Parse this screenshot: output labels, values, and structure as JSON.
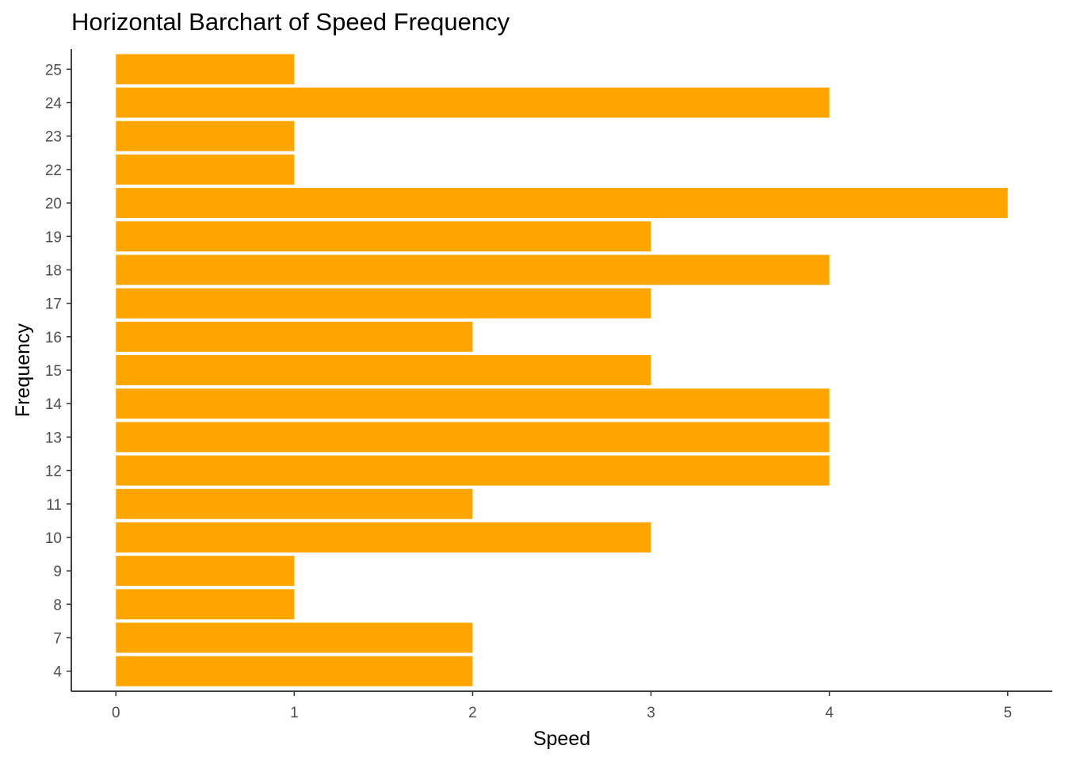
{
  "chart_data": {
    "type": "bar",
    "orientation": "horizontal",
    "title": "Horizontal Barchart of Speed Frequency",
    "xlabel": "Speed",
    "ylabel": "Frequency",
    "categories": [
      "4",
      "7",
      "8",
      "9",
      "10",
      "11",
      "12",
      "13",
      "14",
      "15",
      "16",
      "17",
      "18",
      "19",
      "20",
      "22",
      "23",
      "24",
      "25"
    ],
    "values": [
      2,
      2,
      1,
      1,
      3,
      2,
      4,
      4,
      4,
      3,
      2,
      3,
      4,
      3,
      5,
      1,
      1,
      4,
      1
    ],
    "xticks": [
      "0",
      "1",
      "2",
      "3",
      "4",
      "5"
    ],
    "xlim": [
      -0.25,
      5.25
    ],
    "bar_color": "#FFA500",
    "grid": false,
    "legend": "none"
  }
}
